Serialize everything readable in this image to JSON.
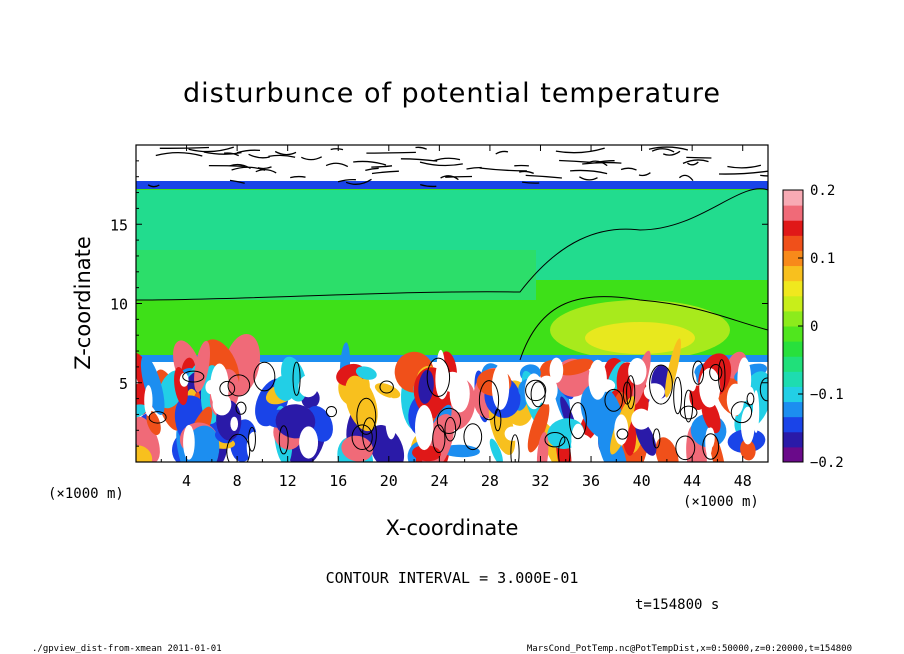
{
  "chart_data": {
    "type": "heatmap",
    "title": "disturbunce of potential temperature",
    "xlabel": "X-coordinate",
    "ylabel": "Z-coordinate",
    "x_unit": "(×1000 m)",
    "y_unit": "(×1000 m)",
    "xlim": [
      0,
      50
    ],
    "ylim": [
      0,
      20
    ],
    "x_ticks": [
      4,
      8,
      12,
      16,
      20,
      24,
      28,
      32,
      36,
      40,
      44,
      48
    ],
    "y_ticks": [
      5,
      10,
      15
    ],
    "colorbar": {
      "range": [
        -0.2,
        0.2
      ],
      "tick_values": [
        0.2,
        0.1,
        0,
        -0.1,
        -0.2
      ],
      "tick_labels": [
        "0.2",
        "0.1",
        "0",
        "−0.1",
        "−0.2"
      ],
      "colors": [
        "#6a0a8a",
        "#2a1aa8",
        "#1a44e8",
        "#1c8ef0",
        "#22cfe6",
        "#1edcb0",
        "#20e07a",
        "#28e03c",
        "#50e61e",
        "#8ceb1c",
        "#c8ee1a",
        "#f0e81e",
        "#f8c01e",
        "#f88a1a",
        "#f0501a",
        "#e01818",
        "#f06a78",
        "#f8aab4"
      ]
    },
    "contour_interval_label": "CONTOUR INTERVAL = 3.000E-01",
    "time_label": "t=154800 s"
  },
  "footer": {
    "left": "./gpview_dist-from-xmean  2011-01-01",
    "right": "MarsCond_PotTemp.nc@PotTempDist,x=0:50000,z=0:20000,t=154800"
  }
}
